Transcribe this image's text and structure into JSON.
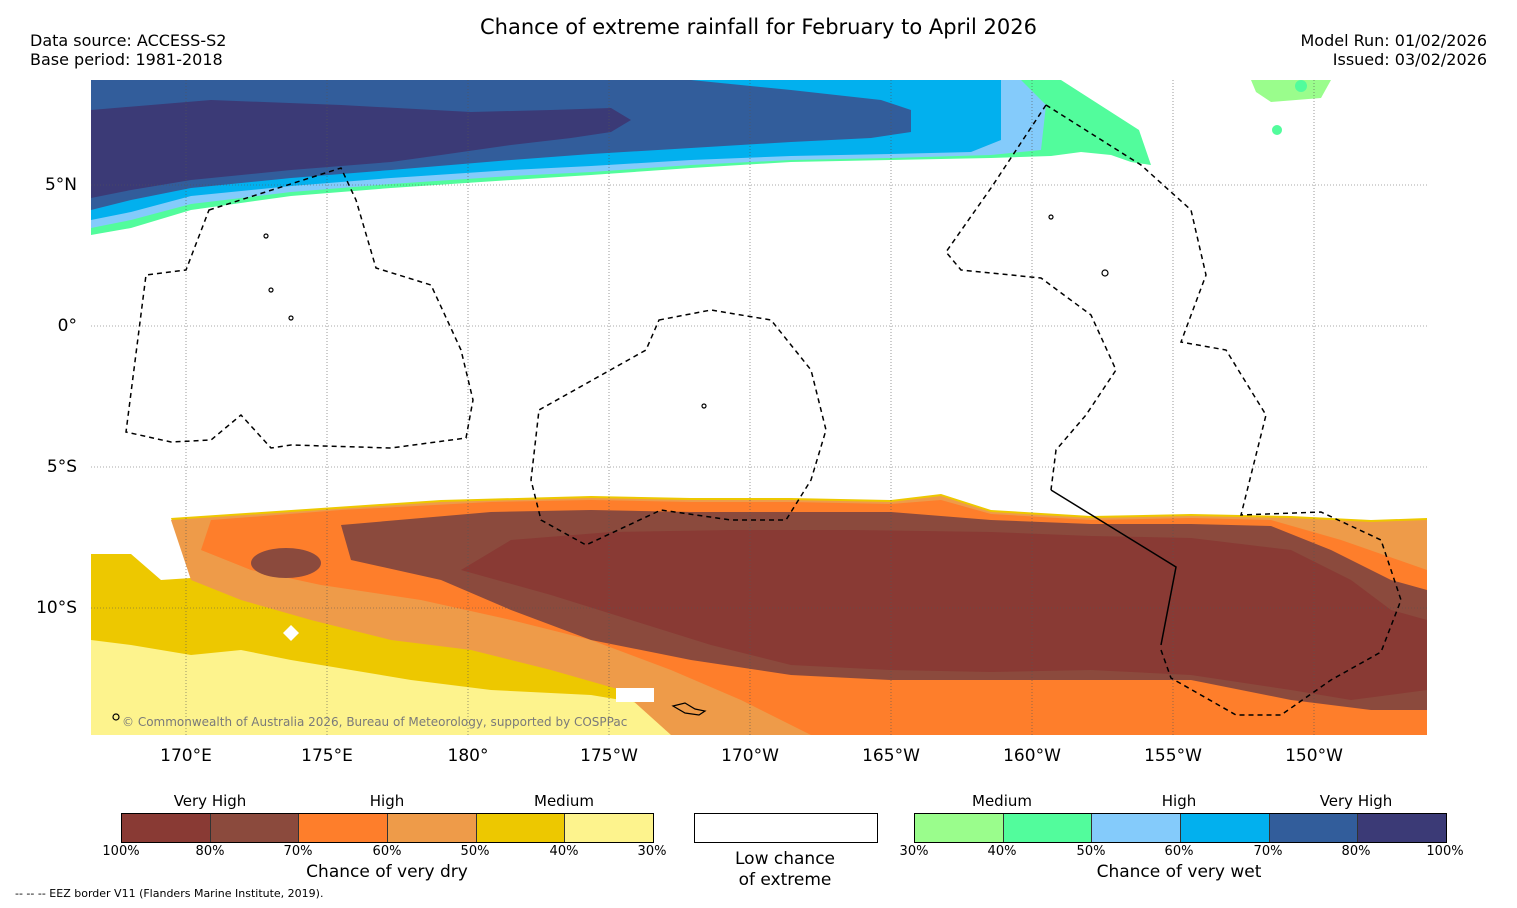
{
  "header": {
    "title": "Chance of extreme rainfall for February to April 2026",
    "data_source": "Data source: ACCESS-S2",
    "base_period": "Base period: 1981-2018",
    "model_run": "Model Run: 01/02/2026",
    "issued": "Issued: 03/02/2026"
  },
  "map": {
    "lat_labels": [
      "5°N",
      "0°",
      "5°S",
      "10°S"
    ],
    "lon_labels": [
      "170°E",
      "175°E",
      "180°",
      "175°W",
      "170°W",
      "165°W",
      "160°W",
      "155°W",
      "150°W"
    ],
    "copyright": "© Commonwealth of Australia 2026, Bureau of Meteorology, supported by COSPPac"
  },
  "legend": {
    "dry": {
      "categories": [
        "Very High",
        "High",
        "Medium"
      ],
      "ticks": [
        "100%",
        "80%",
        "70%",
        "60%",
        "50%",
        "40%",
        "30%"
      ],
      "colors": [
        "#893a34",
        "#8b4a3d",
        "#fe7e2b",
        "#ee9b49",
        "#edc800",
        "#fdf38d"
      ],
      "title": "Chance of very dry"
    },
    "low": {
      "text": "Low chance\nof extreme"
    },
    "wet": {
      "categories": [
        "Medium",
        "High",
        "Very High"
      ],
      "ticks": [
        "30%",
        "40%",
        "50%",
        "60%",
        "70%",
        "80%",
        "100%"
      ],
      "colors": [
        "#9afd8c",
        "#52fc9c",
        "#84cbfb",
        "#02b0ee",
        "#325d9b",
        "#3b3a76"
      ],
      "title": "Chance of very wet"
    }
  },
  "footer": {
    "eez_note": "--  --  -- EEZ border V11 (Flanders Marine Institute, 2019)."
  }
}
